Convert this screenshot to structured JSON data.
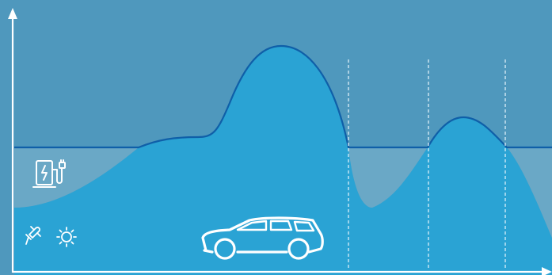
{
  "diagram": {
    "background_color": "#4f98bd",
    "grid_area_color": "#2aa3d4",
    "pale_area_color": "#6aa8c6",
    "curve_color": "#0f5fa8",
    "axis_color": "#ffffff",
    "divider_color": "#e8f6fc",
    "icons": {
      "charging_station": "ev-charging-station-icon",
      "plug": "plug-icon",
      "sun": "sun-icon",
      "car": "station-wagon-car-icon"
    }
  }
}
